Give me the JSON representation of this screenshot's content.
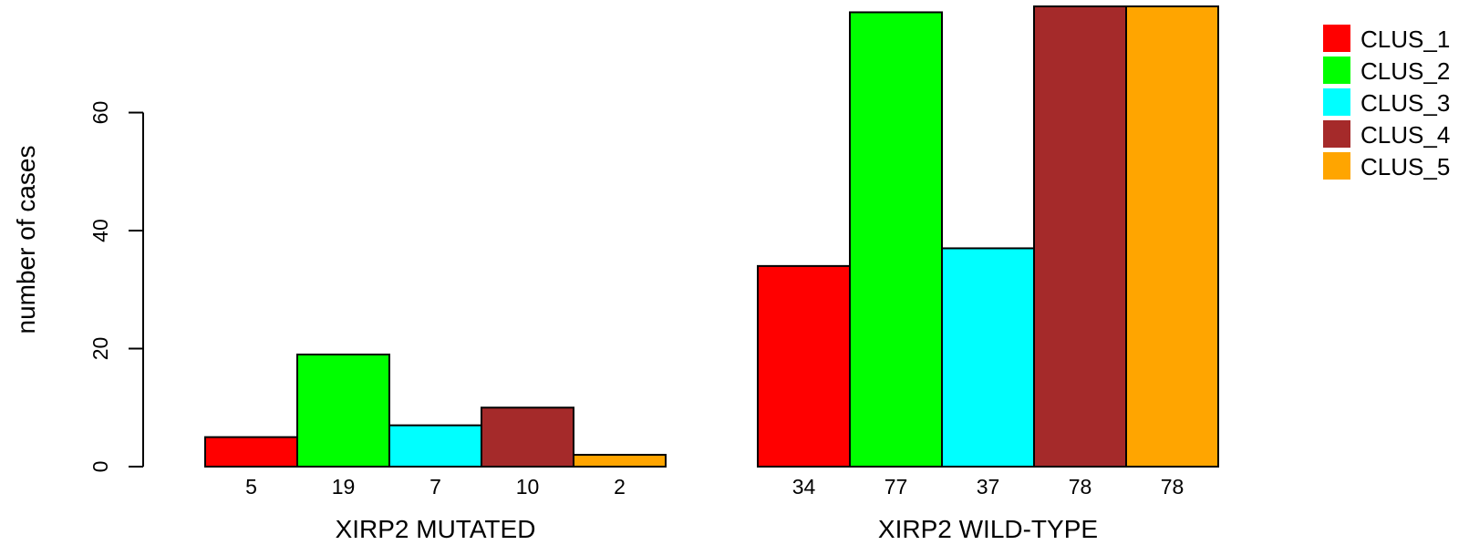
{
  "chart_data": {
    "type": "bar",
    "ylabel": "number of cases",
    "ylim": [
      0,
      78
    ],
    "yticks": [
      0,
      20,
      40,
      60
    ],
    "groups": [
      {
        "label": "XIRP2 MUTATED",
        "values": [
          5,
          19,
          7,
          10,
          2
        ],
        "bar_labels": [
          "5",
          "19",
          "7",
          "10",
          "2"
        ]
      },
      {
        "label": "XIRP2 WILD-TYPE",
        "values": [
          34,
          77,
          37,
          78,
          78
        ],
        "bar_labels": [
          "34",
          "77",
          "37",
          "78",
          "78"
        ]
      }
    ],
    "series": [
      {
        "name": "CLUS_1",
        "color": "#ff0000"
      },
      {
        "name": "CLUS_2",
        "color": "#00ff00"
      },
      {
        "name": "CLUS_3",
        "color": "#00ffff"
      },
      {
        "name": "CLUS_4",
        "color": "#a52a2a"
      },
      {
        "name": "CLUS_5",
        "color": "#ffa500"
      }
    ],
    "legend": "top-right",
    "grid": false
  }
}
